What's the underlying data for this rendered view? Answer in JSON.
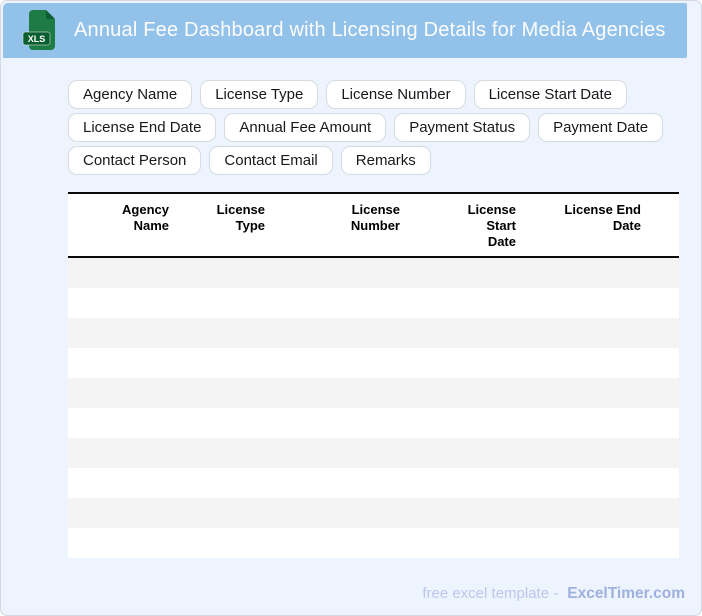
{
  "header": {
    "title": "Annual Fee Dashboard with Licensing Details for Media Agencies",
    "file_icon_label": "XLS"
  },
  "field_buttons": [
    {
      "label": "Agency Name"
    },
    {
      "label": "License Type"
    },
    {
      "label": "License Number"
    },
    {
      "label": "License Start Date"
    },
    {
      "label": "License End Date"
    },
    {
      "label": "Annual Fee Amount"
    },
    {
      "label": "Payment Status"
    },
    {
      "label": "Payment Date"
    },
    {
      "label": "Contact Person"
    },
    {
      "label": "Contact Email"
    },
    {
      "label": "Remarks"
    }
  ],
  "table": {
    "columns": [
      {
        "label": "Agency\nName"
      },
      {
        "label": "License\nType"
      },
      {
        "label": "License\nNumber"
      },
      {
        "label": "License Start\nDate"
      },
      {
        "label": "License End\nDate"
      }
    ],
    "empty_row_count": 10,
    "rows": []
  },
  "footer": {
    "tagline": "free excel template -",
    "brand": "ExcelTimer.com"
  },
  "colors": {
    "header_bg": "#92c1ea",
    "page_bg": "#edf4fd",
    "icon_green": "#1e7b44",
    "icon_fold_green": "#0f5e33",
    "icon_badge_green": "#0b5e2f",
    "stripe_gray": "#f4f4f5",
    "header_border": "#0a0a0a",
    "footer_tagline_color": "#bcc7ee",
    "footer_brand_color": "#9fb0de"
  }
}
